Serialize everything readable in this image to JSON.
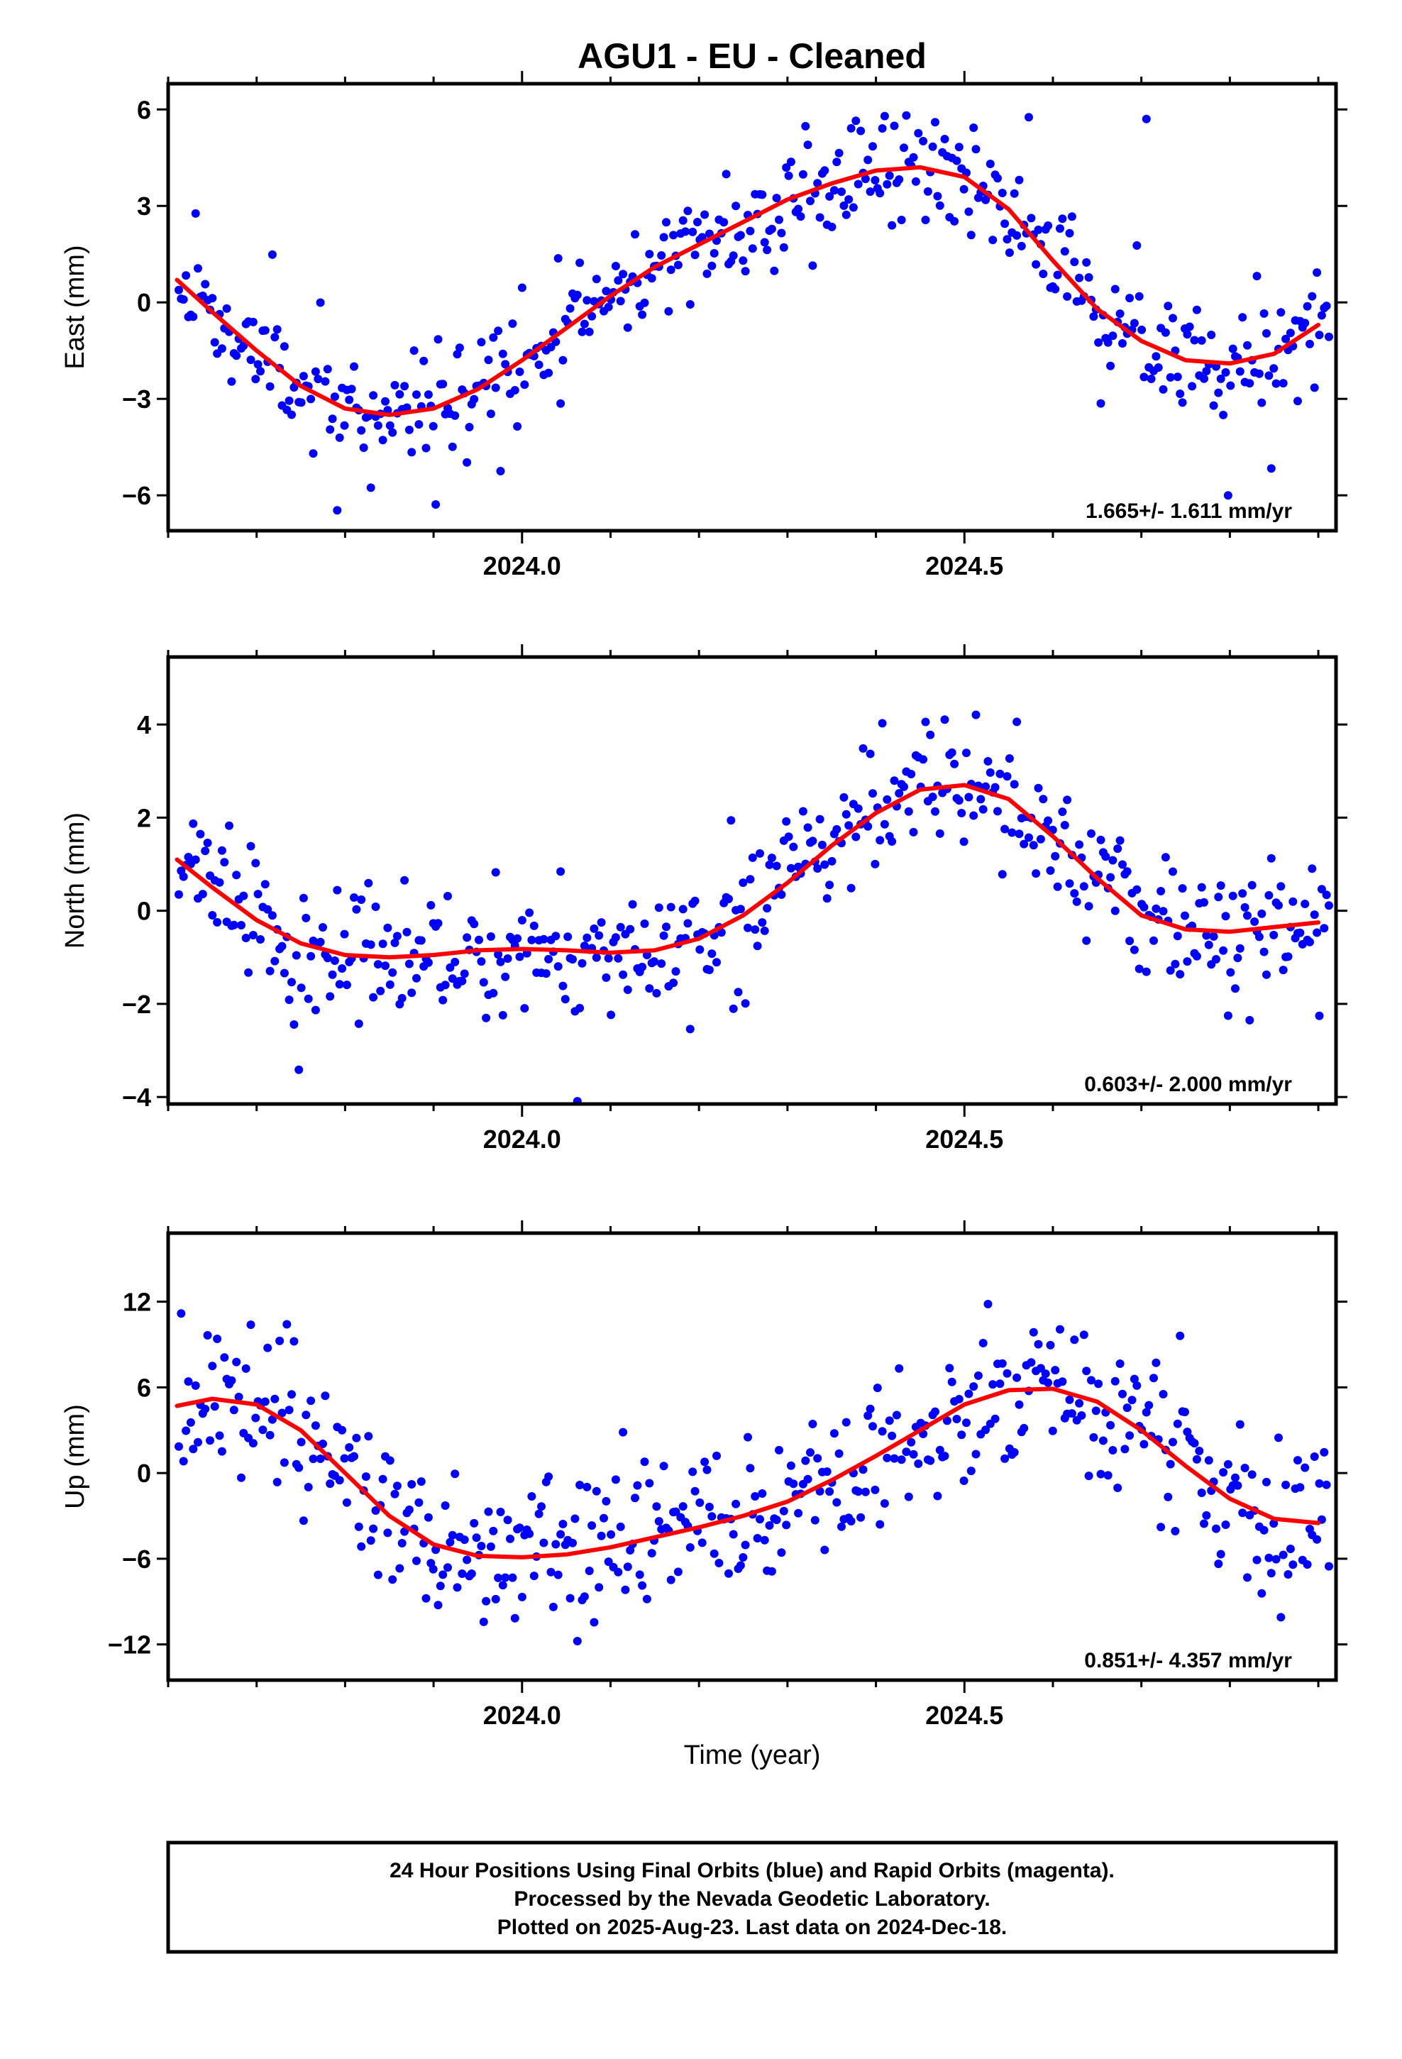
{
  "title": "AGU1  - EU - Cleaned",
  "x_axis_label": "Time (year)",
  "footer_lines": [
    "24 Hour Positions Using Final Orbits (blue) and Rapid Orbits (magenta).",
    "Processed by the Nevada Geodetic Laboratory.",
    "Plotted on 2025-Aug-23. Last data on 2024-Dec-18."
  ],
  "colors": {
    "points": "#0000ff",
    "fit": "#ff0000",
    "frame": "#000000"
  },
  "chart_data": [
    {
      "type": "scatter",
      "ylabel": "East (mm)",
      "rate_text": "1.665+/- 1.611 mm/yr",
      "xlim": [
        2023.6,
        2024.92
      ],
      "ylim": [
        -7.1,
        6.8
      ],
      "xticks": [
        2024.0,
        2024.5
      ],
      "xtick_labels": [
        "2024.0",
        "2024.5"
      ],
      "yticks": [
        6,
        3,
        0,
        -3,
        -6
      ],
      "ytick_labels": [
        "6",
        "3",
        "0",
        "−3",
        "−6"
      ],
      "fit_x": [
        2023.61,
        2023.65,
        2023.7,
        2023.75,
        2023.8,
        2023.85,
        2023.9,
        2023.95,
        2024.0,
        2024.05,
        2024.1,
        2024.15,
        2024.2,
        2024.25,
        2024.3,
        2024.35,
        2024.4,
        2024.45,
        2024.5,
        2024.55,
        2024.6,
        2024.65,
        2024.7,
        2024.75,
        2024.8,
        2024.85,
        2024.9
      ],
      "fit_y": [
        0.7,
        -0.3,
        -1.5,
        -2.6,
        -3.3,
        -3.5,
        -3.3,
        -2.7,
        -1.8,
        -0.8,
        0.2,
        1.1,
        1.8,
        2.5,
        3.2,
        3.7,
        4.1,
        4.2,
        3.9,
        2.9,
        1.3,
        -0.2,
        -1.2,
        -1.8,
        -1.9,
        -1.6,
        -0.7
      ],
      "gen": {
        "seed": 11,
        "n": 480,
        "sigma": 0.95,
        "outlier_rate": 0.05,
        "outlier_scale": 2.4
      }
    },
    {
      "type": "scatter",
      "ylabel": "North (mm)",
      "rate_text": "0.603+/- 2.000 mm/yr",
      "xlim": [
        2023.6,
        2024.92
      ],
      "ylim": [
        -4.15,
        5.45
      ],
      "xticks": [
        2024.0,
        2024.5
      ],
      "xtick_labels": [
        "2024.0",
        "2024.5"
      ],
      "yticks": [
        4,
        2,
        0,
        -2,
        -4
      ],
      "ytick_labels": [
        "4",
        "2",
        "0",
        "−2",
        "−4"
      ],
      "fit_x": [
        2023.61,
        2023.65,
        2023.7,
        2023.75,
        2023.8,
        2023.85,
        2023.9,
        2023.95,
        2024.0,
        2024.05,
        2024.1,
        2024.15,
        2024.2,
        2024.25,
        2024.3,
        2024.35,
        2024.4,
        2024.45,
        2024.5,
        2024.55,
        2024.6,
        2024.65,
        2024.7,
        2024.75,
        2024.8,
        2024.85,
        2024.9
      ],
      "fit_y": [
        1.1,
        0.5,
        -0.2,
        -0.7,
        -0.95,
        -1.0,
        -0.95,
        -0.85,
        -0.82,
        -0.85,
        -0.9,
        -0.85,
        -0.6,
        -0.1,
        0.6,
        1.4,
        2.1,
        2.6,
        2.7,
        2.4,
        1.6,
        0.7,
        -0.1,
        -0.4,
        -0.45,
        -0.35,
        -0.25
      ],
      "gen": {
        "seed": 23,
        "n": 480,
        "sigma": 0.65,
        "outlier_rate": 0.05,
        "outlier_scale": 2.6
      }
    },
    {
      "type": "scatter",
      "ylabel": "Up (mm)",
      "rate_text": "0.851+/- 4.357 mm/yr",
      "xlim": [
        2023.6,
        2024.92
      ],
      "ylim": [
        -14.5,
        16.8
      ],
      "xticks": [
        2024.0,
        2024.5
      ],
      "xtick_labels": [
        "2024.0",
        "2024.5"
      ],
      "yticks": [
        12,
        6,
        0,
        -6,
        -12
      ],
      "ytick_labels": [
        "12",
        "6",
        "0",
        "−6",
        "−12"
      ],
      "fit_x": [
        2023.61,
        2023.65,
        2023.7,
        2023.75,
        2023.8,
        2023.85,
        2023.9,
        2023.95,
        2024.0,
        2024.05,
        2024.1,
        2024.15,
        2024.2,
        2024.25,
        2024.3,
        2024.35,
        2024.4,
        2024.45,
        2024.5,
        2024.55,
        2024.6,
        2024.65,
        2024.7,
        2024.75,
        2024.8,
        2024.85,
        2024.9
      ],
      "fit_y": [
        4.7,
        5.2,
        4.8,
        3.0,
        0.0,
        -3.0,
        -5.0,
        -5.8,
        -5.9,
        -5.7,
        -5.2,
        -4.5,
        -3.8,
        -3.0,
        -2.0,
        -0.5,
        1.2,
        3.0,
        4.8,
        5.8,
        5.9,
        5.0,
        3.0,
        0.5,
        -1.8,
        -3.2,
        -3.5
      ],
      "gen": {
        "seed": 37,
        "n": 480,
        "sigma": 2.6,
        "outlier_rate": 0.05,
        "outlier_scale": 2.3
      }
    }
  ]
}
